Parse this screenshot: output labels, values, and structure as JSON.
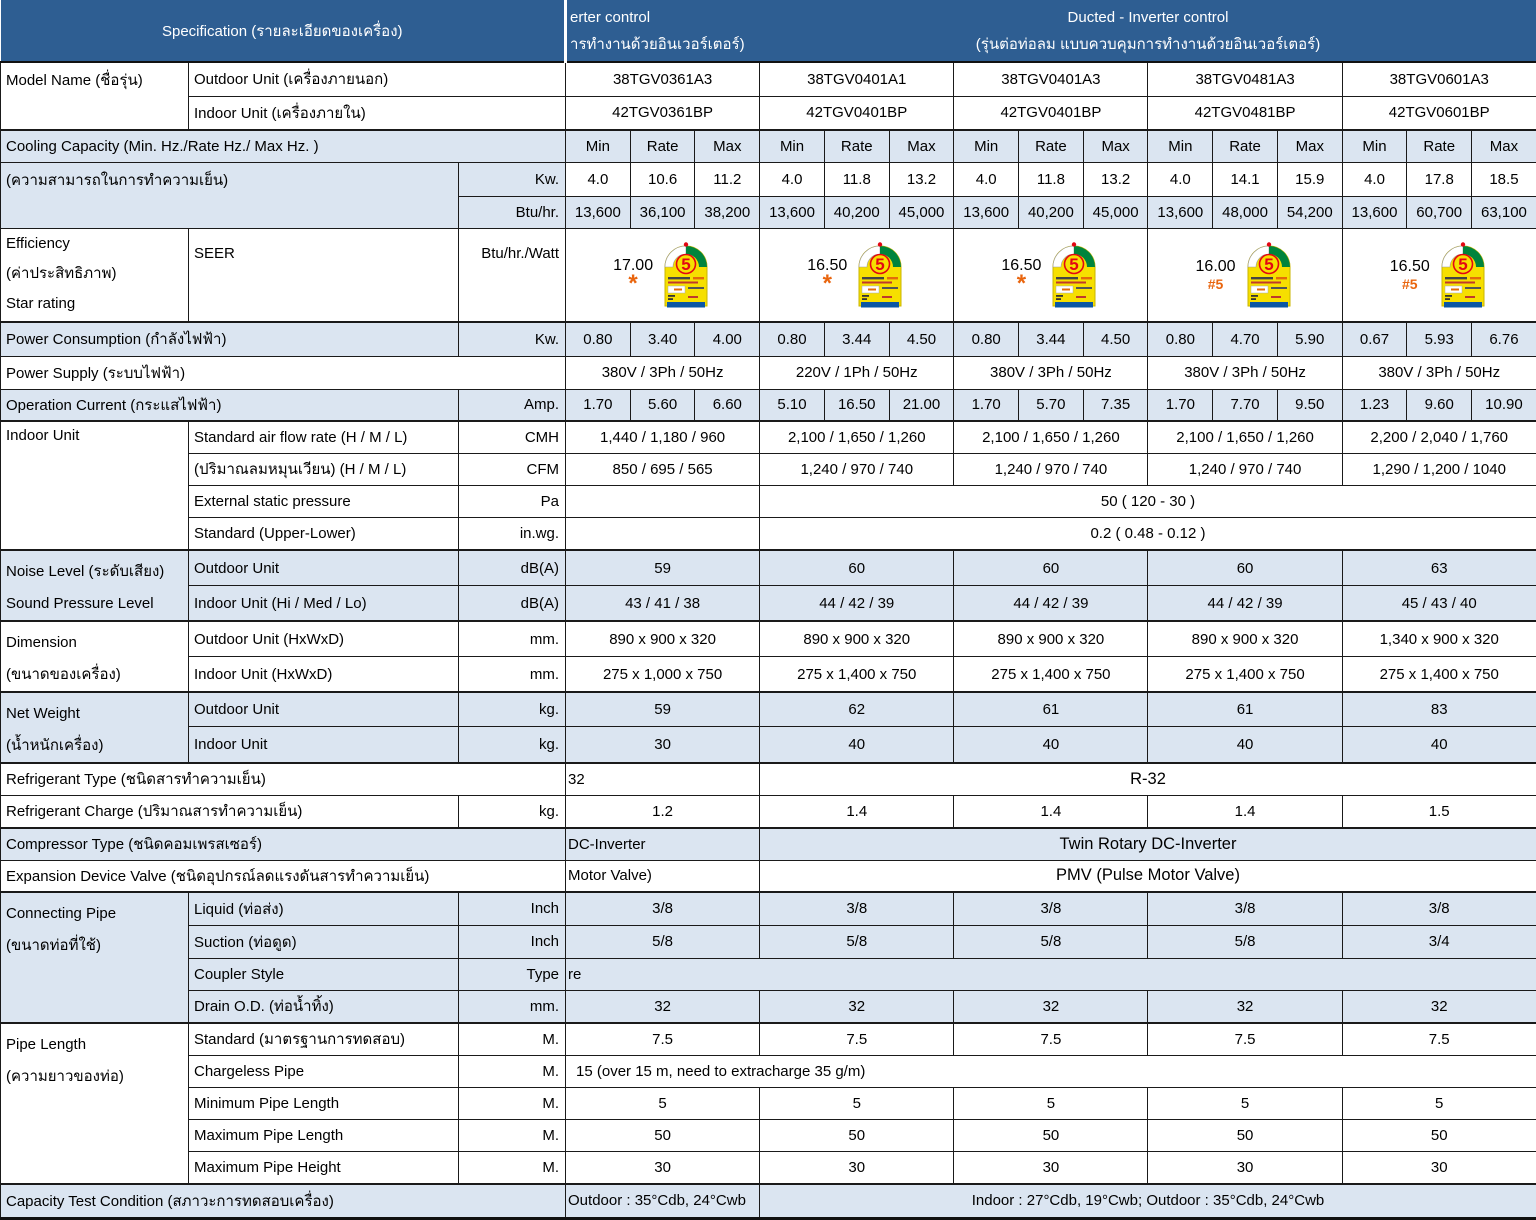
{
  "header": {
    "specification": "Specification (รายละเอียดของเครื่อง)",
    "col1_line1": "erter control",
    "col1_line2": "ารทำงานด้วยอินเวอร์เตอร์)",
    "group_line1": "Ducted - Inverter control",
    "group_line2": "(รุ่นต่อท่อลม แบบควบคุมการทำงานด้วยอินเวอร์เตอร์)"
  },
  "model": {
    "label": "Model Name (ชื่อรุ่น)",
    "outdoor_label": "Outdoor Unit (เครื่องภายนอก)",
    "indoor_label": "Indoor Unit (เครื่องภายใน)",
    "outdoor": [
      "38TGV0361A3",
      "38TGV0401A1",
      "38TGV0401A3",
      "38TGV0481A3",
      "38TGV0601A3"
    ],
    "indoor": [
      "42TGV0361BP",
      "42TGV0401BP",
      "42TGV0401BP",
      "42TGV0481BP",
      "42TGV0601BP"
    ]
  },
  "cooling": {
    "label": "Cooling Capacity (Min. Hz./Rate Hz./ Max Hz. )",
    "sub_label": "(ความสามารถในการทำความเย็น)",
    "mrm": [
      "Min",
      "Rate",
      "Max"
    ],
    "unit_kw": "Kw.",
    "unit_btu": "Btu/hr.",
    "kw": [
      [
        "4.0",
        "10.6",
        "11.2"
      ],
      [
        "4.0",
        "11.8",
        "13.2"
      ],
      [
        "4.0",
        "11.8",
        "13.2"
      ],
      [
        "4.0",
        "14.1",
        "15.9"
      ],
      [
        "4.0",
        "17.8",
        "18.5"
      ]
    ],
    "btu": [
      [
        "13,600",
        "36,100",
        "38,200"
      ],
      [
        "13,600",
        "40,200",
        "45,000"
      ],
      [
        "13,600",
        "40,200",
        "45,000"
      ],
      [
        "13,600",
        "48,000",
        "54,200"
      ],
      [
        "13,600",
        "60,700",
        "63,100"
      ]
    ]
  },
  "seer": {
    "label_line1": "Efficiency",
    "label_line2": "(ค่าประสิทธิภาพ)",
    "label_line3": "Star rating",
    "sub": "SEER",
    "unit": "Btu/hr./Watt",
    "values": [
      "17.00",
      "16.50",
      "16.50",
      "16.00",
      "16.50"
    ],
    "marks": [
      "*",
      "*",
      "*",
      "#5",
      "#5"
    ],
    "badge_number": "5"
  },
  "power": {
    "label": "Power Consumption (กำลังไฟฟ้า)",
    "unit": "Kw.",
    "values": [
      [
        "0.80",
        "3.40",
        "4.00"
      ],
      [
        "0.80",
        "3.44",
        "4.50"
      ],
      [
        "0.80",
        "3.44",
        "4.50"
      ],
      [
        "0.80",
        "4.70",
        "5.90"
      ],
      [
        "0.67",
        "5.93",
        "6.76"
      ]
    ]
  },
  "supply": {
    "label": "Power Supply (ระบบไฟฟ้า)",
    "values": [
      "380V / 3Ph / 50Hz",
      "220V / 1Ph / 50Hz",
      "380V / 3Ph / 50Hz",
      "380V / 3Ph / 50Hz",
      "380V / 3Ph / 50Hz"
    ]
  },
  "current": {
    "label": "Operation Current (กระแสไฟฟ้า)",
    "unit": "Amp.",
    "values": [
      [
        "1.70",
        "5.60",
        "6.60"
      ],
      [
        "5.10",
        "16.50",
        "21.00"
      ],
      [
        "1.70",
        "5.70",
        "7.35"
      ],
      [
        "1.70",
        "7.70",
        "9.50"
      ],
      [
        "1.23",
        "9.60",
        "10.90"
      ]
    ]
  },
  "airflow": {
    "label": "Indoor Unit",
    "cmh_label": "Standard air flow rate  (H / M / L)",
    "cmh_unit": "CMH",
    "cmh": [
      "1,440 / 1,180 / 960",
      "2,100 / 1,650 / 1,260",
      "2,100 / 1,650 / 1,260",
      "2,100 / 1,650 / 1,260",
      "2,200 / 2,040 / 1,760"
    ],
    "cfm_label": "(ปริมาณลมหมุนเวียน) (H / M / L)",
    "cfm_unit": "CFM",
    "cfm": [
      "850 / 695 / 565",
      "1,240 / 970 / 740",
      "1,240 / 970 / 740",
      "1,240 / 970 / 740",
      "1,290 / 1,200 / 1040"
    ],
    "esp_label": "External static pressure",
    "esp_unit": "Pa",
    "esp_value": "50 ( 120 - 30 )",
    "std_label": "Standard (Upper-Lower)",
    "std_unit": "in.wg.",
    "std_value": "0.2 ( 0.48 - 0.12 )"
  },
  "noise": {
    "label_line1": "Noise Level (ระดับเสียง)",
    "label_line2": "Sound Pressure Level",
    "outdoor_label": "Outdoor Unit",
    "indoor_label": "Indoor Unit (Hi / Med / Lo)",
    "unit": "dB(A)",
    "outdoor": [
      "59",
      "60",
      "60",
      "60",
      "63"
    ],
    "indoor": [
      "43 / 41 / 38",
      "44 / 42 / 39",
      "44 / 42 / 39",
      "44 / 42 / 39",
      "45 / 43 / 40"
    ]
  },
  "dimension": {
    "label_line1": "Dimension",
    "label_line2": "(ขนาดของเครื่อง)",
    "outdoor_label": "Outdoor Unit (HxWxD)",
    "indoor_label": "Indoor Unit (HxWxD)",
    "unit": "mm.",
    "outdoor": [
      "890 x 900 x 320",
      "890 x 900 x 320",
      "890 x 900 x 320",
      "890 x 900 x 320",
      "1,340 x 900 x 320"
    ],
    "indoor": [
      "275 x 1,000 x 750",
      "275 x 1,400 x 750",
      "275 x 1,400 x 750",
      "275 x 1,400 x 750",
      "275 x 1,400 x 750"
    ]
  },
  "weight": {
    "label_line1": "Net Weight",
    "label_line2": "(น้ำหนักเครื่อง)",
    "outdoor_label": "Outdoor Unit",
    "indoor_label": "Indoor Unit",
    "unit": "kg.",
    "outdoor": [
      "59",
      "62",
      "61",
      "61",
      "83"
    ],
    "indoor": [
      "30",
      "40",
      "40",
      "40",
      "40"
    ]
  },
  "refrigerant": {
    "type_label": "Refrigerant Type (ชนิดสารทำความเย็น)",
    "type_col1": "32",
    "type_span": "R-32",
    "charge_label": "Refrigerant  Charge (ปริมาณสารทำความเย็น)",
    "charge_unit": "kg.",
    "charge": [
      "1.2",
      "1.4",
      "1.4",
      "1.4",
      "1.5"
    ]
  },
  "compressor": {
    "label": "Compressor Type (ชนิดคอมเพรสเซอร์)",
    "col1": "DC-Inverter",
    "span": "Twin Rotary DC-Inverter"
  },
  "expansion": {
    "label": "Expansion Device Valve (ชนิดอุปกรณ์ลดแรงดันสารทำความเย็น)",
    "col1": "Motor Valve)",
    "span": "PMV (Pulse Motor Valve)"
  },
  "pipe": {
    "label_line1": "Connecting Pipe",
    "label_line2": "(ขนาดท่อที่ใช้)",
    "liquid_label": "Liquid (ท่อส่ง)",
    "liquid_unit": "Inch",
    "liquid": [
      "3/8",
      "3/8",
      "3/8",
      "3/8",
      "3/8"
    ],
    "suction_label": "Suction (ท่อดูด)",
    "suction_unit": "Inch",
    "suction": [
      "5/8",
      "5/8",
      "5/8",
      "5/8",
      "3/4"
    ],
    "coupler_label": "Coupler Style",
    "coupler_unit": "Type",
    "coupler_value": "re",
    "drain_label": "Drain O.D. (ท่อน้ำทิ้ง)",
    "drain_unit": "mm.",
    "drain": [
      "32",
      "32",
      "32",
      "32",
      "32"
    ]
  },
  "length": {
    "label_line1": "Pipe Length",
    "label_line2": "(ความยาวของท่อ)",
    "standard_label": "Standard (มาตรฐานการทดสอบ)",
    "unit": "M.",
    "standard": [
      "7.5",
      "7.5",
      "7.5",
      "7.5",
      "7.5"
    ],
    "chargeless_label": "Chargeless Pipe",
    "chargeless_value": "15 (over 15 m, need to  extracharge 35 g/m)",
    "minimum_label": "Minimum Pipe Length",
    "minimum": [
      "5",
      "5",
      "5",
      "5",
      "5"
    ],
    "max_len_label": "Maximum Pipe Length",
    "max_len": [
      "50",
      "50",
      "50",
      "50",
      "50"
    ],
    "max_h_label": "Maximum Pipe Height",
    "max_h": [
      "30",
      "30",
      "30",
      "30",
      "30"
    ]
  },
  "test": {
    "label": "Capacity Test Condition (สภาวะการทดสอบเครื่อง)",
    "col1": "Outdoor : 35°Cdb, 24°Cwb",
    "span": "Indoor : 27°Cdb, 19°Cwb; Outdoor : 35°Cdb, 24°Cwb"
  },
  "colors": {
    "header_bg": "#2e5e92",
    "row_blue": "#dbe5f1",
    "accent_orange": "#e9650e",
    "badge_green": "#00843d",
    "badge_yellow": "#f6df00",
    "badge_red": "#e30613",
    "badge_blue": "#0b57a4"
  }
}
